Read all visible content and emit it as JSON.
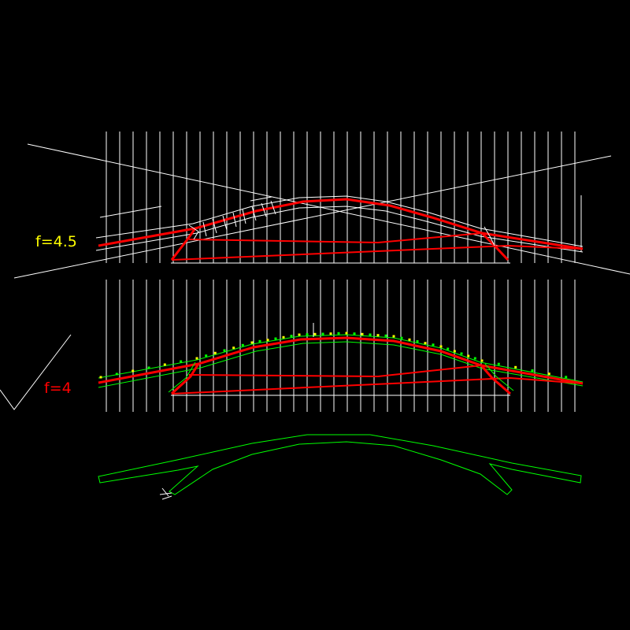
{
  "labels": {
    "top": "f=4.5",
    "middle": "f=4"
  },
  "colors": {
    "background": "#000000",
    "grid": "#ffffff",
    "structure": "#ff0000",
    "outline": "#00ff00",
    "label_top": "#ffff00",
    "label_middle": "#ff0000",
    "markers": "#ffff00"
  }
}
